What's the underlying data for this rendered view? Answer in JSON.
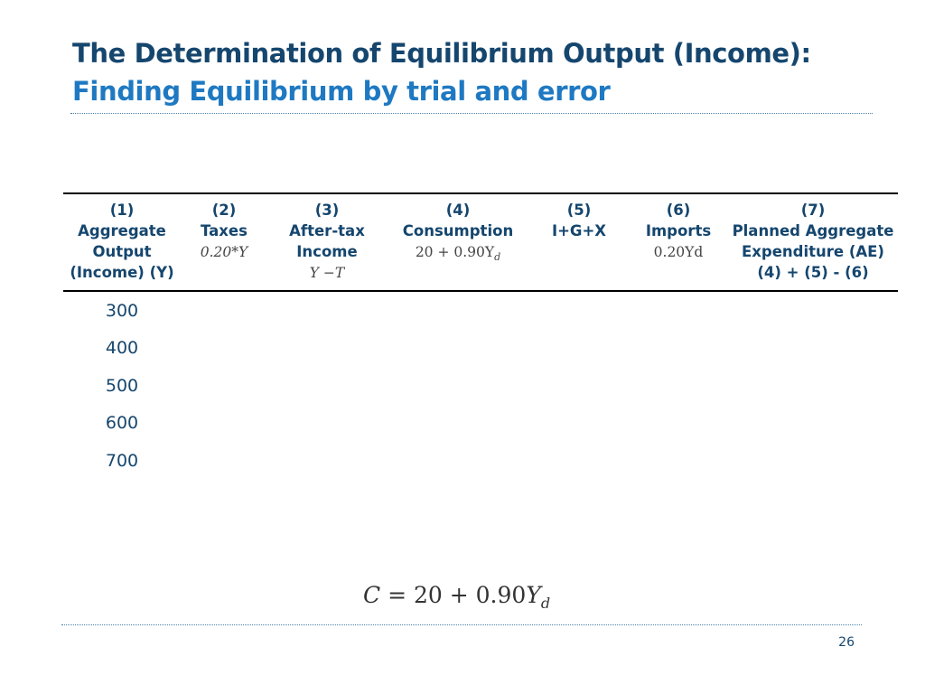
{
  "slide": {
    "title_line1": "The Determination of Equilibrium Output (Income):",
    "title_line2": "Finding Equilibrium by trial and error",
    "page_number": "26"
  },
  "colors": {
    "title_dark": "#15466e",
    "title_accent": "#1e79c2",
    "rule": "#4a7fa8"
  },
  "table": {
    "columns": [
      {
        "num": "(1)",
        "label": "Aggregate Output (Income) (Y)",
        "formula": ""
      },
      {
        "num": "(2)",
        "label": "Taxes",
        "formula": "0.20*Y"
      },
      {
        "num": "(3)",
        "label": "After-tax Income",
        "formula": "Y −T"
      },
      {
        "num": "(4)",
        "label": "Consumption",
        "formula_base": "20 + 0.90Y",
        "formula_sub": "d"
      },
      {
        "num": "(5)",
        "label": "I+G+X",
        "formula": ""
      },
      {
        "num": "(6)",
        "label": "Imports",
        "formula": "0.20Yd"
      },
      {
        "num": "(7)",
        "label": "Planned Aggregate Expenditure (AE) (4) + (5) - (6)",
        "formula": ""
      }
    ],
    "rows": [
      {
        "output": "300"
      },
      {
        "output": "400"
      },
      {
        "output": "500"
      },
      {
        "output": "600"
      },
      {
        "output": "700"
      }
    ]
  },
  "equation": {
    "lhs": "C",
    "rhs_base": "= 20 + 0.90",
    "rhs_var": "Y",
    "rhs_sub": "d"
  }
}
